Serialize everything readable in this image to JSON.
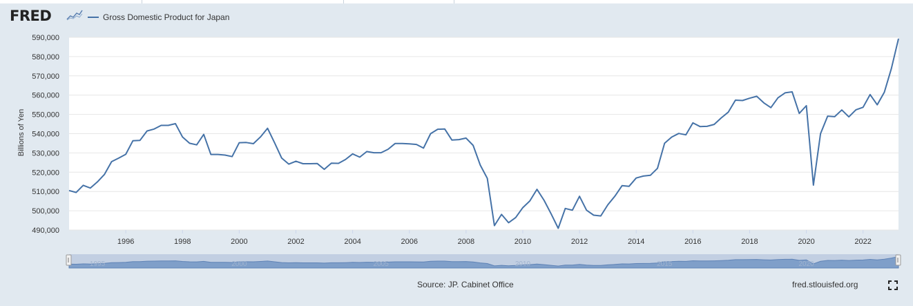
{
  "header": {
    "logo_text": "FRED",
    "logo_mark_icon": "fred-chart-line-icon"
  },
  "legend": {
    "series_label": "Gross Domestic Product for Japan",
    "series_color": "#4572a7"
  },
  "footer": {
    "source": "Source: JP. Cabinet Office",
    "site": "fred.stlouisfed.org",
    "fullscreen_icon": "expand-icon"
  },
  "navigator": {
    "year_labels": [
      "1995",
      "2000",
      "2005",
      "2010",
      "2015",
      "2020"
    ]
  },
  "chart_data": {
    "type": "line",
    "title": "",
    "xlabel": "",
    "ylabel": "Billions of Yen",
    "ylim": [
      490000,
      590000
    ],
    "yticks": [
      490000,
      500000,
      510000,
      520000,
      530000,
      540000,
      550000,
      560000,
      570000,
      580000,
      590000
    ],
    "ytick_labels": [
      "490,000",
      "500,000",
      "510,000",
      "520,000",
      "530,000",
      "540,000",
      "550,000",
      "560,000",
      "570,000",
      "580,000",
      "590,000"
    ],
    "xlim": [
      1994.0,
      2023.25
    ],
    "xtick_labels": [
      "1996",
      "1998",
      "2000",
      "2002",
      "2004",
      "2006",
      "2008",
      "2010",
      "2012",
      "2014",
      "2016",
      "2018",
      "2020",
      "2022"
    ],
    "grid": true,
    "series": [
      {
        "name": "Gross Domestic Product for Japan",
        "frequency": "quarterly",
        "start": "1994-Q1",
        "values": [
          510500,
          509500,
          513200,
          511800,
          515000,
          518900,
          525500,
          527300,
          529300,
          536300,
          536500,
          541400,
          542400,
          544300,
          544300,
          545200,
          538300,
          535000,
          534200,
          539600,
          529200,
          529200,
          528900,
          528100,
          535300,
          535400,
          534800,
          538300,
          542800,
          535200,
          527300,
          524200,
          525700,
          524400,
          524400,
          524500,
          521500,
          524700,
          524600,
          526600,
          529500,
          527800,
          530700,
          530100,
          530100,
          531900,
          534900,
          534900,
          534700,
          534400,
          532500,
          540000,
          542300,
          542400,
          536700,
          536900,
          537700,
          533900,
          523700,
          516800,
          492300,
          498100,
          493800,
          496500,
          501600,
          505100,
          511100,
          505400,
          498400,
          490900,
          501200,
          500300,
          507500,
          500300,
          497700,
          497300,
          503100,
          507600,
          513000,
          512700,
          517000,
          518000,
          518400,
          522000,
          535000,
          538200,
          540100,
          539400,
          545600,
          543700,
          543800,
          544800,
          548200,
          551200,
          557400,
          557200,
          558400,
          559400,
          556000,
          553500,
          558600,
          561200,
          561700,
          550500,
          554500,
          513300,
          540000,
          549100,
          548800,
          552300,
          548700,
          552400,
          553700,
          560300,
          555000,
          561500,
          573800,
          589300
        ]
      }
    ]
  }
}
